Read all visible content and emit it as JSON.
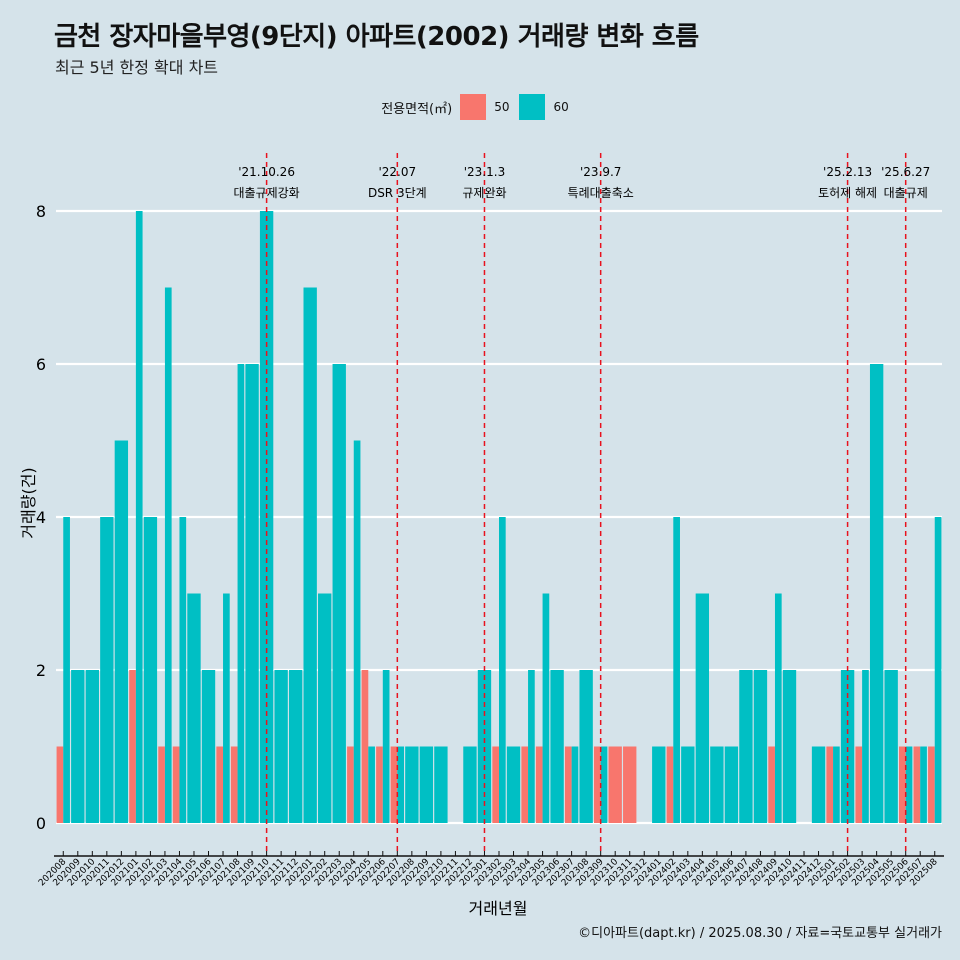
{
  "header": {
    "title": "금천 장자마을부영(9단지) 아파트(2002) 거래량 변화 흐름",
    "subtitle": "최근 5년 한정 확대 차트"
  },
  "legend": {
    "title": "전용면적(㎡)",
    "items": [
      {
        "label": "50",
        "color": "#f8766d"
      },
      {
        "label": "60",
        "color": "#00bfc4"
      }
    ]
  },
  "caption": "©디아파트(dapt.kr) / 2025.08.30 / 자료=국토교통부 실거래가",
  "chart_data": {
    "type": "bar",
    "stacked": false,
    "grouped": true,
    "xlabel": "거래년월",
    "ylabel": "거래량(건)",
    "ylim": [
      0,
      8
    ],
    "yticks": [
      0,
      2,
      4,
      6,
      8
    ],
    "grid": "horizontal major lines",
    "legend_position": "top",
    "background": "#d5e3ea",
    "categories": [
      "202008",
      "202009",
      "202010",
      "202011",
      "202012",
      "202101",
      "202102",
      "202103",
      "202104",
      "202105",
      "202106",
      "202107",
      "202108",
      "202109",
      "202110",
      "202111",
      "202112",
      "202201",
      "202202",
      "202203",
      "202204",
      "202205",
      "202206",
      "202207",
      "202208",
      "202209",
      "202210",
      "202211",
      "202212",
      "202301",
      "202302",
      "202303",
      "202304",
      "202305",
      "202306",
      "202307",
      "202308",
      "202309",
      "202310",
      "202311",
      "202312",
      "202401",
      "202402",
      "202403",
      "202404",
      "202405",
      "202406",
      "202407",
      "202408",
      "202409",
      "202410",
      "202411",
      "202412",
      "202501",
      "202502",
      "202503",
      "202504",
      "202505",
      "202506",
      "202507",
      "202508"
    ],
    "series": [
      {
        "name": "50",
        "color": "#f8766d",
        "values": [
          1,
          null,
          null,
          null,
          null,
          2,
          null,
          1,
          1,
          null,
          null,
          1,
          1,
          null,
          null,
          null,
          null,
          null,
          null,
          null,
          1,
          2,
          1,
          1,
          null,
          null,
          null,
          null,
          null,
          null,
          1,
          null,
          1,
          1,
          null,
          1,
          null,
          1,
          1,
          1,
          null,
          null,
          1,
          null,
          null,
          null,
          null,
          null,
          null,
          1,
          null,
          null,
          null,
          1,
          null,
          1,
          null,
          null,
          1,
          1,
          1
        ]
      },
      {
        "name": "60",
        "color": "#00bfc4",
        "values": [
          4,
          2,
          2,
          4,
          5,
          8,
          4,
          7,
          4,
          3,
          2,
          3,
          6,
          6,
          8,
          2,
          2,
          7,
          3,
          6,
          5,
          1,
          2,
          1,
          1,
          1,
          1,
          null,
          1,
          2,
          4,
          1,
          2,
          3,
          2,
          1,
          2,
          1,
          null,
          null,
          null,
          1,
          4,
          1,
          3,
          1,
          1,
          2,
          2,
          3,
          2,
          null,
          1,
          1,
          2,
          2,
          6,
          2,
          1,
          1,
          4
        ]
      }
    ],
    "annotations": [
      {
        "x": "202110",
        "date": "'21.10.26",
        "label": "대출규제강화"
      },
      {
        "x": "202207",
        "date": "'22.07",
        "label": "DSR 3단계"
      },
      {
        "x": "202301",
        "date": "'23.1.3",
        "label": "규제완화"
      },
      {
        "x": "202309",
        "date": "'23.9.7",
        "label": "특례대출축소"
      },
      {
        "x": "202502",
        "date": "'25.2.13",
        "label": "토허제 해제"
      },
      {
        "x": "202506",
        "date": "'25.6.27",
        "label": "대출규제"
      }
    ]
  }
}
